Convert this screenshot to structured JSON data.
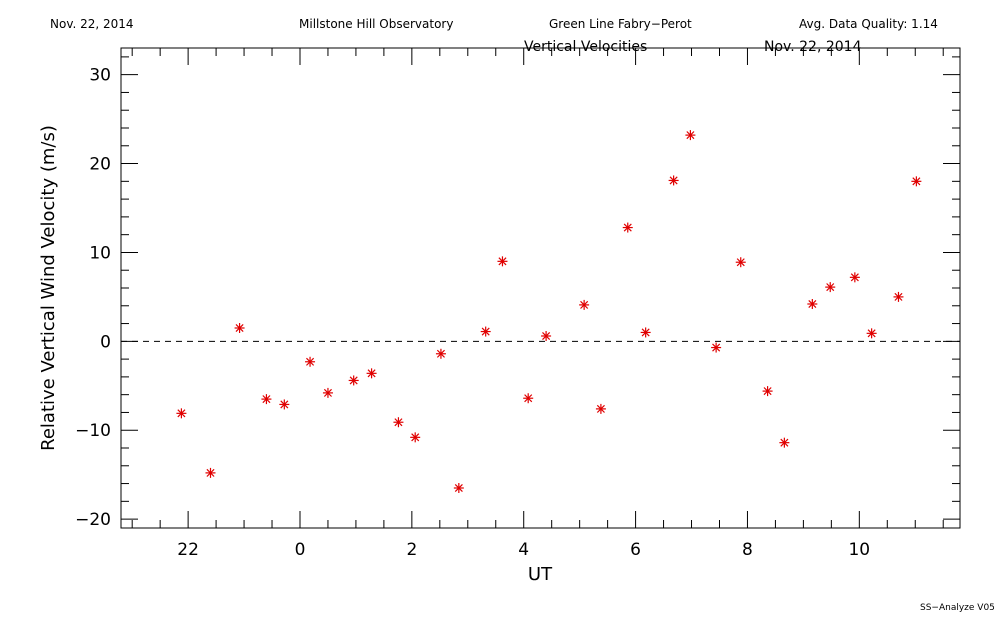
{
  "header": {
    "date": "Nov. 22, 2014",
    "observatory": "Millstone Hill Observatory",
    "instrument": "Green Line Fabry−Perot",
    "quality": "Avg. Data Quality: 1.14"
  },
  "subheader": {
    "title": "Vertical Velocities",
    "date": "Nov. 22, 2014"
  },
  "footer": "SS−Analyze V05",
  "colors": {
    "marker": "#e00000",
    "axis": "#000000"
  },
  "chart_data": {
    "type": "scatter",
    "xlabel": "UT",
    "ylabel": "Relative Vertical Wind Velocity (m/s)",
    "xlim": [
      20.8,
      35.8
    ],
    "ylim": [
      -21,
      33
    ],
    "x_ticks": [
      22,
      24,
      26,
      28,
      30,
      32,
      34
    ],
    "x_tick_labels": [
      "22",
      "0",
      "2",
      "4",
      "6",
      "8",
      "10"
    ],
    "y_ticks": [
      -20,
      -10,
      0,
      10,
      20,
      30
    ],
    "y_tick_labels": [
      "−20",
      "−10",
      "0",
      "10",
      "20",
      "30"
    ],
    "zero_line": "dashed",
    "series": [
      {
        "marker": "asterisk",
        "x": [
          21.88,
          22.4,
          22.92,
          23.4,
          23.72,
          24.18,
          24.5,
          24.96,
          25.28,
          25.76,
          26.06,
          26.52,
          26.84,
          27.32,
          27.62,
          28.08,
          28.4,
          29.08,
          29.38,
          29.86,
          30.18,
          30.68,
          30.98,
          31.44,
          31.88,
          32.36,
          32.66,
          33.16,
          33.48,
          33.92,
          34.22,
          34.7,
          35.02
        ],
        "y": [
          -8.1,
          -14.8,
          1.5,
          -6.5,
          -7.1,
          -2.3,
          -5.8,
          -4.4,
          -3.6,
          -9.1,
          -10.8,
          -1.4,
          -16.5,
          1.1,
          9.0,
          -6.4,
          0.6,
          4.1,
          -7.6,
          12.8,
          1.0,
          18.1,
          23.2,
          -0.7,
          8.9,
          -5.6,
          -11.4,
          4.2,
          6.1,
          7.2,
          0.9,
          5.0,
          18.0
        ]
      }
    ]
  }
}
